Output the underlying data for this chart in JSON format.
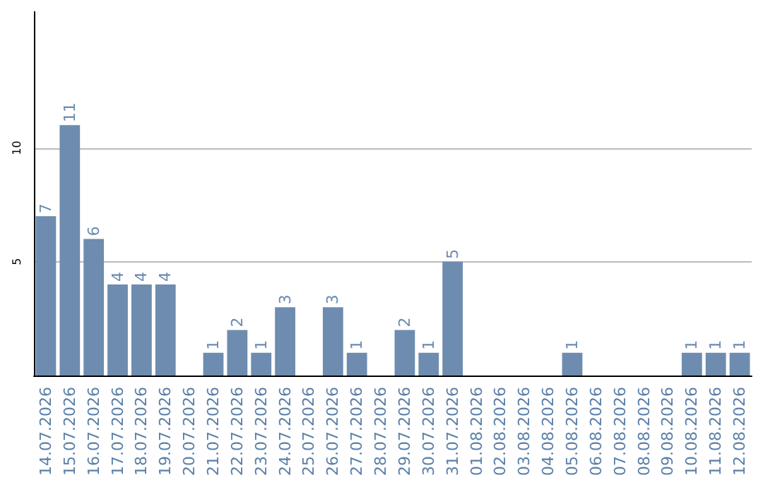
{
  "chart_data": {
    "type": "bar",
    "categories": [
      "14.07.2026",
      "15.07.2026",
      "16.07.2026",
      "17.07.2026",
      "18.07.2026",
      "19.07.2026",
      "20.07.2026",
      "21.07.2026",
      "22.07.2026",
      "23.07.2026",
      "24.07.2026",
      "25.07.2026",
      "26.07.2026",
      "27.07.2026",
      "28.07.2026",
      "29.07.2026",
      "30.07.2026",
      "31.07.2026",
      "01.08.2026",
      "02.08.2026",
      "03.08.2026",
      "04.08.2026",
      "05.08.2026",
      "06.08.2026",
      "07.08.2026",
      "08.08.2026",
      "09.08.2026",
      "10.08.2026",
      "11.08.2026",
      "12.08.2026"
    ],
    "values": [
      7,
      11,
      6,
      4,
      4,
      4,
      0,
      1,
      2,
      1,
      3,
      0,
      3,
      1,
      0,
      2,
      1,
      5,
      0,
      0,
      0,
      0,
      1,
      0,
      0,
      0,
      0,
      1,
      1,
      1
    ],
    "value_labels": [
      "7",
      "11",
      "6",
      "4",
      "4",
      "4",
      null,
      "1",
      "2",
      "1",
      "3",
      null,
      "3",
      "1",
      null,
      "2",
      "1",
      "5",
      null,
      null,
      null,
      null,
      "1",
      null,
      null,
      null,
      null,
      "1",
      "1",
      "1"
    ],
    "color": "#6d8caf",
    "ylim": [
      0,
      16
    ],
    "yticks": [
      5,
      10
    ],
    "grid": "y"
  }
}
